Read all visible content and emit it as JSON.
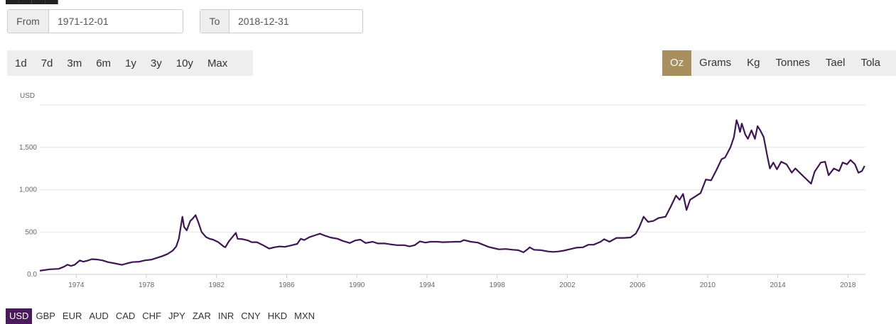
{
  "date_range": {
    "from_label": "From",
    "from_value": "1971-12-01",
    "to_label": "To",
    "to_value": "2018-12-31"
  },
  "time_ranges": [
    "1d",
    "7d",
    "3m",
    "6m",
    "1y",
    "3y",
    "10y",
    "Max"
  ],
  "units": {
    "items": [
      "Oz",
      "Grams",
      "Kg",
      "Tonnes",
      "Tael",
      "Tola"
    ],
    "active": "Oz"
  },
  "currencies": {
    "items": [
      "USD",
      "GBP",
      "EUR",
      "AUD",
      "CAD",
      "CHF",
      "JPY",
      "ZAR",
      "INR",
      "CNY",
      "HKD",
      "MXN"
    ],
    "active": "USD"
  },
  "colors": {
    "line": "#3f1654",
    "active_unit": "#a98f5e",
    "active_currency": "#4a1a5c",
    "grid": "#e6e6e6"
  },
  "chart_data": {
    "type": "line",
    "ylabel": "USD",
    "ylim": [
      0,
      2000
    ],
    "yticks": [
      0,
      500,
      1000,
      1500
    ],
    "ytick_labels": [
      "0.0",
      "500",
      "1,000",
      "1,500"
    ],
    "xlim": [
      1971.92,
      2019.0
    ],
    "xticks": [
      1974,
      1978,
      1982,
      1986,
      1990,
      1994,
      1998,
      2002,
      2006,
      2010,
      2014,
      2018
    ],
    "grid": true,
    "series": [
      {
        "values": [
          [
            1971.92,
            43
          ],
          [
            1972.5,
            60
          ],
          [
            1973.0,
            65
          ],
          [
            1973.3,
            90
          ],
          [
            1973.5,
            115
          ],
          [
            1973.7,
            100
          ],
          [
            1973.9,
            112
          ],
          [
            1974.2,
            165
          ],
          [
            1974.4,
            150
          ],
          [
            1974.6,
            160
          ],
          [
            1974.9,
            180
          ],
          [
            1975.2,
            175
          ],
          [
            1975.5,
            165
          ],
          [
            1975.8,
            145
          ],
          [
            1976.2,
            130
          ],
          [
            1976.6,
            112
          ],
          [
            1976.9,
            130
          ],
          [
            1977.2,
            145
          ],
          [
            1977.6,
            150
          ],
          [
            1977.9,
            165
          ],
          [
            1978.3,
            175
          ],
          [
            1978.6,
            195
          ],
          [
            1978.9,
            215
          ],
          [
            1979.2,
            240
          ],
          [
            1979.5,
            280
          ],
          [
            1979.7,
            330
          ],
          [
            1979.85,
            420
          ],
          [
            1980.05,
            680
          ],
          [
            1980.15,
            560
          ],
          [
            1980.3,
            520
          ],
          [
            1980.5,
            630
          ],
          [
            1980.65,
            660
          ],
          [
            1980.8,
            700
          ],
          [
            1980.95,
            620
          ],
          [
            1981.15,
            500
          ],
          [
            1981.4,
            440
          ],
          [
            1981.6,
            420
          ],
          [
            1981.8,
            410
          ],
          [
            1982.1,
            380
          ],
          [
            1982.4,
            330
          ],
          [
            1982.5,
            320
          ],
          [
            1982.7,
            390
          ],
          [
            1982.9,
            440
          ],
          [
            1983.1,
            490
          ],
          [
            1983.2,
            420
          ],
          [
            1983.5,
            415
          ],
          [
            1983.8,
            400
          ],
          [
            1984.0,
            380
          ],
          [
            1984.3,
            380
          ],
          [
            1984.6,
            350
          ],
          [
            1985.0,
            305
          ],
          [
            1985.3,
            320
          ],
          [
            1985.6,
            330
          ],
          [
            1985.9,
            325
          ],
          [
            1986.2,
            340
          ],
          [
            1986.6,
            360
          ],
          [
            1986.8,
            420
          ],
          [
            1987.0,
            405
          ],
          [
            1987.3,
            440
          ],
          [
            1987.6,
            460
          ],
          [
            1987.9,
            480
          ],
          [
            1988.2,
            455
          ],
          [
            1988.5,
            435
          ],
          [
            1988.9,
            420
          ],
          [
            1989.2,
            395
          ],
          [
            1989.6,
            370
          ],
          [
            1989.9,
            400
          ],
          [
            1990.2,
            410
          ],
          [
            1990.5,
            370
          ],
          [
            1990.9,
            385
          ],
          [
            1991.2,
            365
          ],
          [
            1991.6,
            365
          ],
          [
            1991.9,
            355
          ],
          [
            1992.3,
            345
          ],
          [
            1992.7,
            345
          ],
          [
            1993.0,
            330
          ],
          [
            1993.3,
            345
          ],
          [
            1993.6,
            390
          ],
          [
            1993.9,
            375
          ],
          [
            1994.2,
            385
          ],
          [
            1994.6,
            385
          ],
          [
            1994.9,
            380
          ],
          [
            1995.2,
            382
          ],
          [
            1995.6,
            385
          ],
          [
            1995.9,
            385
          ],
          [
            1996.1,
            405
          ],
          [
            1996.5,
            385
          ],
          [
            1996.9,
            375
          ],
          [
            1997.2,
            350
          ],
          [
            1997.5,
            325
          ],
          [
            1997.8,
            310
          ],
          [
            1998.1,
            295
          ],
          [
            1998.5,
            300
          ],
          [
            1998.9,
            290
          ],
          [
            1999.2,
            285
          ],
          [
            1999.5,
            260
          ],
          [
            1999.75,
            300
          ],
          [
            1999.85,
            320
          ],
          [
            2000.1,
            290
          ],
          [
            2000.5,
            285
          ],
          [
            2000.9,
            270
          ],
          [
            2001.2,
            265
          ],
          [
            2001.5,
            270
          ],
          [
            2001.8,
            280
          ],
          [
            2002.2,
            300
          ],
          [
            2002.5,
            315
          ],
          [
            2002.9,
            320
          ],
          [
            2003.2,
            350
          ],
          [
            2003.5,
            350
          ],
          [
            2003.9,
            385
          ],
          [
            2004.1,
            415
          ],
          [
            2004.4,
            385
          ],
          [
            2004.8,
            430
          ],
          [
            2005.2,
            430
          ],
          [
            2005.6,
            435
          ],
          [
            2005.9,
            480
          ],
          [
            2006.1,
            555
          ],
          [
            2006.35,
            680
          ],
          [
            2006.6,
            620
          ],
          [
            2006.9,
            630
          ],
          [
            2007.2,
            665
          ],
          [
            2007.6,
            680
          ],
          [
            2007.9,
            800
          ],
          [
            2008.2,
            930
          ],
          [
            2008.4,
            880
          ],
          [
            2008.6,
            950
          ],
          [
            2008.8,
            760
          ],
          [
            2009.0,
            880
          ],
          [
            2009.3,
            920
          ],
          [
            2009.6,
            960
          ],
          [
            2009.9,
            1120
          ],
          [
            2010.2,
            1110
          ],
          [
            2010.5,
            1230
          ],
          [
            2010.8,
            1360
          ],
          [
            2011.0,
            1380
          ],
          [
            2011.3,
            1500
          ],
          [
            2011.5,
            1620
          ],
          [
            2011.65,
            1820
          ],
          [
            2011.75,
            1760
          ],
          [
            2011.85,
            1680
          ],
          [
            2011.95,
            1780
          ],
          [
            2012.15,
            1650
          ],
          [
            2012.3,
            1600
          ],
          [
            2012.5,
            1700
          ],
          [
            2012.7,
            1600
          ],
          [
            2012.85,
            1750
          ],
          [
            2013.0,
            1700
          ],
          [
            2013.2,
            1620
          ],
          [
            2013.4,
            1400
          ],
          [
            2013.55,
            1250
          ],
          [
            2013.75,
            1320
          ],
          [
            2013.95,
            1240
          ],
          [
            2014.2,
            1330
          ],
          [
            2014.5,
            1300
          ],
          [
            2014.8,
            1200
          ],
          [
            2015.0,
            1250
          ],
          [
            2015.3,
            1190
          ],
          [
            2015.6,
            1130
          ],
          [
            2015.9,
            1070
          ],
          [
            2016.1,
            1210
          ],
          [
            2016.45,
            1320
          ],
          [
            2016.7,
            1330
          ],
          [
            2016.9,
            1170
          ],
          [
            2017.2,
            1250
          ],
          [
            2017.5,
            1220
          ],
          [
            2017.7,
            1320
          ],
          [
            2017.95,
            1300
          ],
          [
            2018.15,
            1350
          ],
          [
            2018.4,
            1300
          ],
          [
            2018.6,
            1200
          ],
          [
            2018.8,
            1220
          ],
          [
            2018.95,
            1280
          ]
        ]
      }
    ]
  }
}
